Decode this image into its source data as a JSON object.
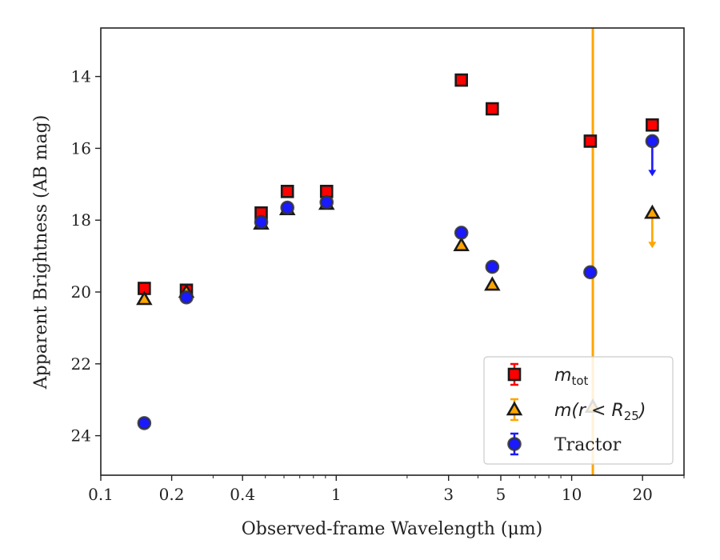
{
  "chart_data": {
    "type": "scatter",
    "title": "",
    "xlabel": "Observed-frame Wavelength (μm)",
    "ylabel": "Apparent Brightness (AB mag)",
    "xscale": "log",
    "yaxis_inverted": true,
    "xlim": [
      0.1,
      30
    ],
    "ylim": [
      25.1,
      12.65
    ],
    "xticks": [
      {
        "value": 0.1,
        "label": "0.1"
      },
      {
        "value": 0.2,
        "label": "0.2"
      },
      {
        "value": 0.4,
        "label": "0.4"
      },
      {
        "value": 1,
        "label": "1"
      },
      {
        "value": 3,
        "label": "3"
      },
      {
        "value": 5,
        "label": "5"
      },
      {
        "value": 10,
        "label": "10"
      },
      {
        "value": 20,
        "label": "20"
      }
    ],
    "yticks": [
      {
        "value": 14,
        "label": "14"
      },
      {
        "value": 16,
        "label": "16"
      },
      {
        "value": 18,
        "label": "18"
      },
      {
        "value": 20,
        "label": "20"
      },
      {
        "value": 22,
        "label": "22"
      },
      {
        "value": 24,
        "label": "24"
      }
    ],
    "vline": {
      "x": 12.3,
      "color": "#ffa500"
    },
    "legend_position": "bottom-right",
    "series": [
      {
        "name": "m_tot",
        "legend_label": {
          "main": "m",
          "sub": "tot"
        },
        "marker": "square",
        "color": "#ff0000",
        "edge": "#1a1a1a",
        "points": [
          {
            "x": 0.153,
            "y": 19.9
          },
          {
            "x": 0.231,
            "y": 19.95
          },
          {
            "x": 0.48,
            "y": 17.8
          },
          {
            "x": 0.62,
            "y": 17.2
          },
          {
            "x": 0.91,
            "y": 17.2
          },
          {
            "x": 3.4,
            "y": 14.1
          },
          {
            "x": 4.6,
            "y": 14.9
          },
          {
            "x": 12.0,
            "y": 15.8
          },
          {
            "x": 22.0,
            "y": 15.35
          }
        ]
      },
      {
        "name": "m(r < R_25)",
        "legend_label": {
          "main": "m(r < R",
          "sub": "25",
          "tail": ")"
        },
        "marker": "triangle",
        "color": "#ffa500",
        "edge": "#1a1a1a",
        "points": [
          {
            "x": 0.153,
            "y": 20.2
          },
          {
            "x": 0.231,
            "y": 20.0
          },
          {
            "x": 0.48,
            "y": 18.1
          },
          {
            "x": 0.62,
            "y": 17.7
          },
          {
            "x": 0.91,
            "y": 17.55
          },
          {
            "x": 3.4,
            "y": 18.7
          },
          {
            "x": 4.6,
            "y": 19.8
          },
          {
            "x": 12.3,
            "y": 23.2
          },
          {
            "x": 22.0,
            "y": 17.8,
            "upper_limit": true
          }
        ]
      },
      {
        "name": "Tractor",
        "legend_label": {
          "main": "Tractor"
        },
        "marker": "circle",
        "color": "#1a1aff",
        "edge": "#333333",
        "points": [
          {
            "x": 0.153,
            "y": 23.65
          },
          {
            "x": 0.231,
            "y": 20.15
          },
          {
            "x": 0.48,
            "y": 18.05
          },
          {
            "x": 0.62,
            "y": 17.65
          },
          {
            "x": 0.91,
            "y": 17.5
          },
          {
            "x": 3.4,
            "y": 18.35
          },
          {
            "x": 4.6,
            "y": 19.3
          },
          {
            "x": 12.0,
            "y": 19.45
          },
          {
            "x": 22.0,
            "y": 15.8,
            "upper_limit": true
          }
        ]
      }
    ]
  }
}
